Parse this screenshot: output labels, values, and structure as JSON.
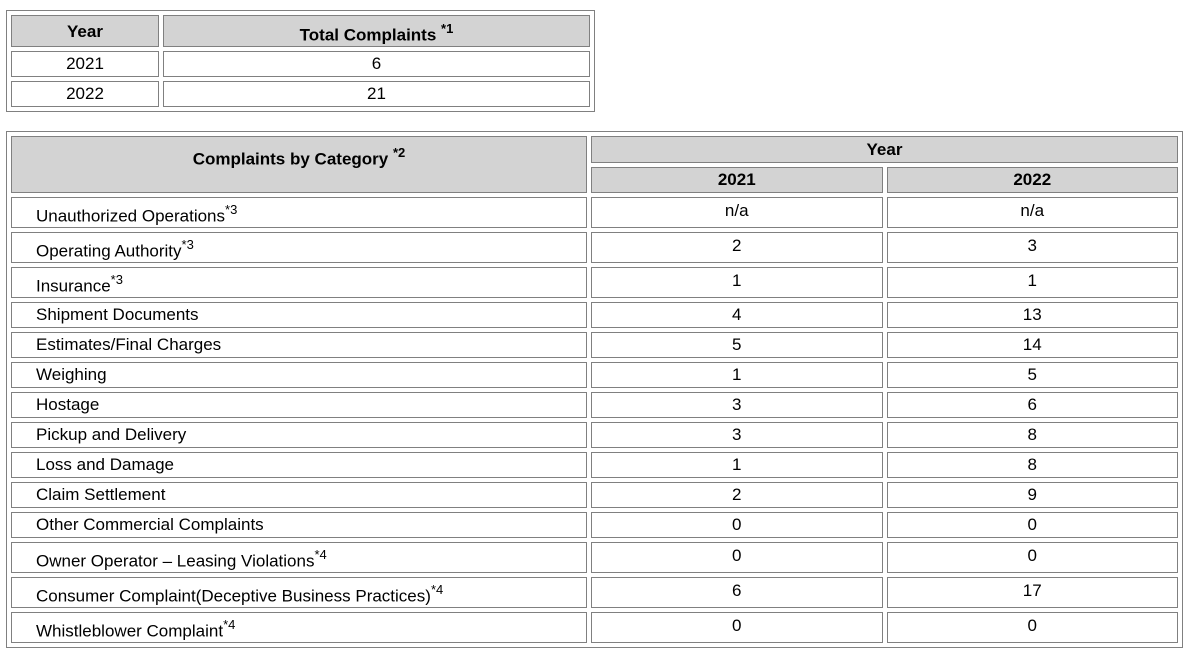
{
  "totals": {
    "header_year": "Year",
    "header_total": "Total Complaints",
    "header_total_note": "*1",
    "rows": [
      {
        "year": "2021",
        "total": "6"
      },
      {
        "year": "2022",
        "total": "21"
      }
    ]
  },
  "categories": {
    "header_category": "Complaints by Category",
    "header_category_note": "*2",
    "header_year_group": "Year",
    "year_cols": [
      "2021",
      "2022"
    ],
    "rows": [
      {
        "label": "Unauthorized Operations",
        "note": "*3",
        "v2021": "n/a",
        "v2022": "n/a"
      },
      {
        "label": "Operating Authority",
        "note": "*3",
        "v2021": "2",
        "v2022": "3"
      },
      {
        "label": "Insurance",
        "note": "*3",
        "v2021": "1",
        "v2022": "1"
      },
      {
        "label": "Shipment Documents",
        "note": "",
        "v2021": "4",
        "v2022": "13"
      },
      {
        "label": "Estimates/Final Charges",
        "note": "",
        "v2021": "5",
        "v2022": "14"
      },
      {
        "label": "Weighing",
        "note": "",
        "v2021": "1",
        "v2022": "5"
      },
      {
        "label": "Hostage",
        "note": "",
        "v2021": "3",
        "v2022": "6"
      },
      {
        "label": "Pickup and Delivery",
        "note": "",
        "v2021": "3",
        "v2022": "8"
      },
      {
        "label": "Loss and Damage",
        "note": "",
        "v2021": "1",
        "v2022": "8"
      },
      {
        "label": "Claim Settlement",
        "note": "",
        "v2021": "2",
        "v2022": "9"
      },
      {
        "label": "Other Commercial Complaints",
        "note": "",
        "v2021": "0",
        "v2022": "0"
      },
      {
        "label": "Owner Operator – Leasing Violations",
        "note": "*4",
        "v2021": "0",
        "v2022": "0"
      },
      {
        "label": "Consumer Complaint(Deceptive Business Practices)",
        "note": "*4",
        "v2021": "6",
        "v2022": "17"
      },
      {
        "label": "Whistleblower Complaint",
        "note": "*4",
        "v2021": "0",
        "v2022": "0"
      }
    ]
  }
}
